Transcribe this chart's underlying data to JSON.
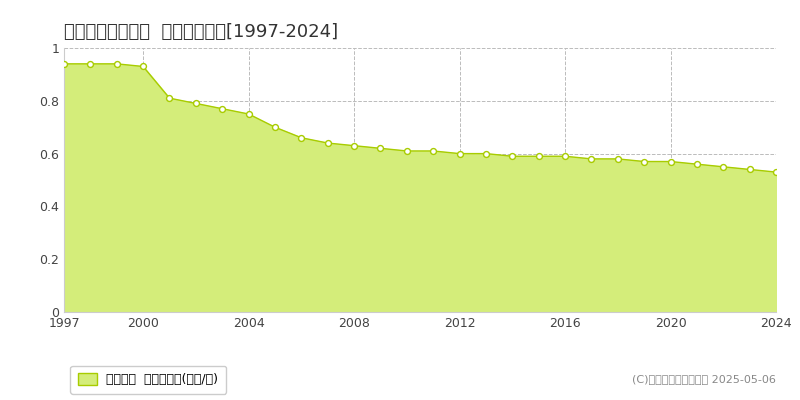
{
  "title": "上川郡和寒町東町  基準地価推移[1997-2024]",
  "years": [
    1997,
    1998,
    1999,
    2000,
    2001,
    2002,
    2003,
    2004,
    2005,
    2006,
    2007,
    2008,
    2009,
    2010,
    2011,
    2012,
    2013,
    2014,
    2015,
    2016,
    2017,
    2018,
    2019,
    2020,
    2021,
    2022,
    2023,
    2024
  ],
  "values": [
    0.94,
    0.94,
    0.94,
    0.93,
    0.81,
    0.79,
    0.77,
    0.75,
    0.7,
    0.66,
    0.64,
    0.63,
    0.62,
    0.61,
    0.61,
    0.6,
    0.6,
    0.59,
    0.59,
    0.59,
    0.58,
    0.58,
    0.57,
    0.57,
    0.56,
    0.55,
    0.54,
    0.53
  ],
  "fill_color": "#d4ed7a",
  "line_color": "#a8cc00",
  "marker_facecolor": "#ffffff",
  "marker_edgecolor": "#a8cc00",
  "background_color": "#ffffff",
  "grid_color": "#bbbbbb",
  "xlim": [
    1997,
    2024
  ],
  "ylim": [
    0,
    1.0
  ],
  "yticks": [
    0,
    0.2,
    0.4,
    0.6,
    0.8,
    1.0
  ],
  "xticks": [
    1997,
    2000,
    2004,
    2008,
    2012,
    2016,
    2020,
    2024
  ],
  "legend_label": "基準地価  平均坪単価(万円/坪)",
  "copyright_text": "(C)土地価格ドットコム 2025-05-06",
  "title_fontsize": 13,
  "tick_fontsize": 9,
  "legend_fontsize": 9,
  "copyright_fontsize": 8
}
